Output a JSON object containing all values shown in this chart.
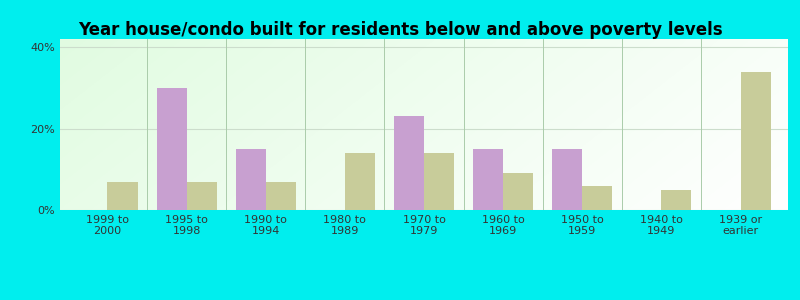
{
  "categories": [
    "1999 to\n2000",
    "1995 to\n1998",
    "1990 to\n1994",
    "1980 to\n1989",
    "1970 to\n1979",
    "1960 to\n1969",
    "1950 to\n1959",
    "1940 to\n1949",
    "1939 or\nearlier"
  ],
  "below_poverty": [
    0,
    30,
    15,
    0,
    23,
    15,
    15,
    0,
    0
  ],
  "above_poverty": [
    7,
    7,
    7,
    14,
    14,
    9,
    6,
    5,
    34
  ],
  "below_color": "#c8a0d0",
  "above_color": "#c8cc9a",
  "title": "Year house/condo built for residents below and above poverty levels",
  "title_fontsize": 12,
  "ylabel_ticks": [
    "0%",
    "20%",
    "40%"
  ],
  "yticks": [
    0,
    20,
    40
  ],
  "ylim": [
    0,
    42
  ],
  "outer_bg": "#00eeee",
  "bar_width": 0.38,
  "tick_fontsize": 8,
  "legend_fontsize": 9,
  "grid_color": "#ccddcc",
  "separator_color": "#aaccaa"
}
